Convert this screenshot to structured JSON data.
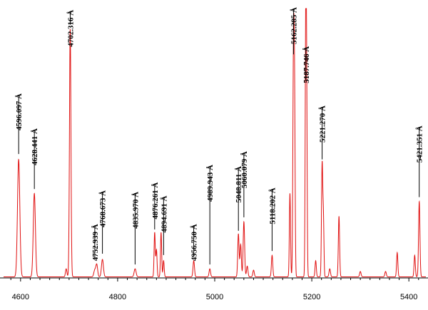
{
  "chart_data": {
    "type": "line",
    "title": "",
    "xlabel": "",
    "ylabel": "",
    "xlim": [
      4565,
      5435
    ],
    "ylim": [
      0,
      1.0
    ],
    "grid": false,
    "line_color": "#e01010",
    "x_ticks": [
      {
        "value": 4600,
        "label": "4600"
      },
      {
        "value": 4800,
        "label": "4800"
      },
      {
        "value": 5000,
        "label": "5000"
      },
      {
        "value": 5200,
        "label": "5200"
      },
      {
        "value": 5400,
        "label": "5400"
      }
    ],
    "series": [
      {
        "peaks": [
          {
            "x": 4596.1,
            "y": 0.436,
            "w": 2.4
          },
          {
            "x": 4628.4,
            "y": 0.31,
            "w": 2.2
          },
          {
            "x": 4694.0,
            "y": 0.03,
            "w": 1.5
          },
          {
            "x": 4702.3,
            "y": 0.92,
            "w": 1.5
          },
          {
            "x": 4752.9,
            "y": 0.025,
            "w": 2.0
          },
          {
            "x": 4757.0,
            "y": 0.045,
            "w": 1.8
          },
          {
            "x": 4768.7,
            "y": 0.065,
            "w": 2.0
          },
          {
            "x": 4836.0,
            "y": 0.03,
            "w": 2.0
          },
          {
            "x": 4876.3,
            "y": 0.165,
            "w": 1.2
          },
          {
            "x": 4880.0,
            "y": 0.1,
            "w": 1.2
          },
          {
            "x": 4889.5,
            "y": 0.165,
            "w": 1.2
          },
          {
            "x": 4894.7,
            "y": 0.06,
            "w": 1.2
          },
          {
            "x": 4956.8,
            "y": 0.06,
            "w": 1.5
          },
          {
            "x": 4989.9,
            "y": 0.03,
            "w": 1.5
          },
          {
            "x": 5048.8,
            "y": 0.16,
            "w": 1.4
          },
          {
            "x": 5053.5,
            "y": 0.12,
            "w": 1.4
          },
          {
            "x": 5060.1,
            "y": 0.205,
            "w": 1.5
          },
          {
            "x": 5067.0,
            "y": 0.04,
            "w": 1.5
          },
          {
            "x": 5080.0,
            "y": 0.025,
            "w": 1.5
          },
          {
            "x": 5118.2,
            "y": 0.08,
            "w": 1.4
          },
          {
            "x": 5155.0,
            "y": 0.31,
            "w": 1.2
          },
          {
            "x": 5162.3,
            "y": 0.815,
            "w": 1.3
          },
          {
            "x": 5164.5,
            "y": 0.6,
            "w": 1.2
          },
          {
            "x": 5187.7,
            "y": 1.0,
            "w": 1.2
          },
          {
            "x": 5189.5,
            "y": 0.5,
            "w": 1.1
          },
          {
            "x": 5208.0,
            "y": 0.06,
            "w": 1.3
          },
          {
            "x": 5221.3,
            "y": 0.42,
            "w": 1.3
          },
          {
            "x": 5224.0,
            "y": 0.2,
            "w": 1.1
          },
          {
            "x": 5237.0,
            "y": 0.03,
            "w": 1.5
          },
          {
            "x": 5256.0,
            "y": 0.225,
            "w": 1.3
          },
          {
            "x": 5300.0,
            "y": 0.02,
            "w": 1.5
          },
          {
            "x": 5352.0,
            "y": 0.02,
            "w": 1.5
          },
          {
            "x": 5376.0,
            "y": 0.09,
            "w": 1.3
          },
          {
            "x": 5412.0,
            "y": 0.08,
            "w": 1.3
          },
          {
            "x": 5421.4,
            "y": 0.28,
            "w": 1.4
          }
        ]
      }
    ],
    "annotations": [
      {
        "label": "4596.097 Å",
        "x": 4596.097,
        "y_top": 0.68,
        "y_bottom": 0.46
      },
      {
        "label": "4628.441 Å",
        "x": 4628.441,
        "y_top": 0.55,
        "y_bottom": 0.33
      },
      {
        "label": "4702.316 Å",
        "x": 4702.316,
        "y_top": 0.99,
        "y_bottom": 0.94
      },
      {
        "label": "4752.939 Å",
        "x": 4752.939,
        "y_top": 0.195,
        "y_bottom": 0.07
      },
      {
        "label": "4768.673 Å",
        "x": 4768.673,
        "y_top": 0.32,
        "y_bottom": 0.09
      },
      {
        "label": "4835.970 Å",
        "x": 4835.97,
        "y_top": 0.315,
        "y_bottom": 0.05
      },
      {
        "label": "4876.261 Å",
        "x": 4876.261,
        "y_top": 0.35,
        "y_bottom": 0.18
      },
      {
        "label": "4894.691 Å",
        "x": 4894.691,
        "y_top": 0.3,
        "y_bottom": 0.085
      },
      {
        "label": "4956.750 Å",
        "x": 4956.75,
        "y_top": 0.195,
        "y_bottom": 0.08
      },
      {
        "label": "4989.943 Å",
        "x": 4989.943,
        "y_top": 0.415,
        "y_bottom": 0.05
      },
      {
        "label": "5048.811 Å",
        "x": 5048.811,
        "y_top": 0.41,
        "y_bottom": 0.175
      },
      {
        "label": "5060.079 Å",
        "x": 5060.079,
        "y_top": 0.465,
        "y_bottom": 0.225
      },
      {
        "label": "5118.202 Å",
        "x": 5118.202,
        "y_top": 0.33,
        "y_bottom": 0.1
      },
      {
        "label": "5162.285 Å",
        "x": 5162.285,
        "y_top": 1.0,
        "y_bottom": 0.83
      },
      {
        "label": "5187.746 Å",
        "x": 5187.746,
        "y_top": 0.855,
        "y_bottom": 0.73
      },
      {
        "label": "5221.270 Å",
        "x": 5221.27,
        "y_top": 0.635,
        "y_bottom": 0.44
      },
      {
        "label": "5421.351 Å",
        "x": 5421.351,
        "y_top": 0.56,
        "y_bottom": 0.3
      }
    ]
  }
}
